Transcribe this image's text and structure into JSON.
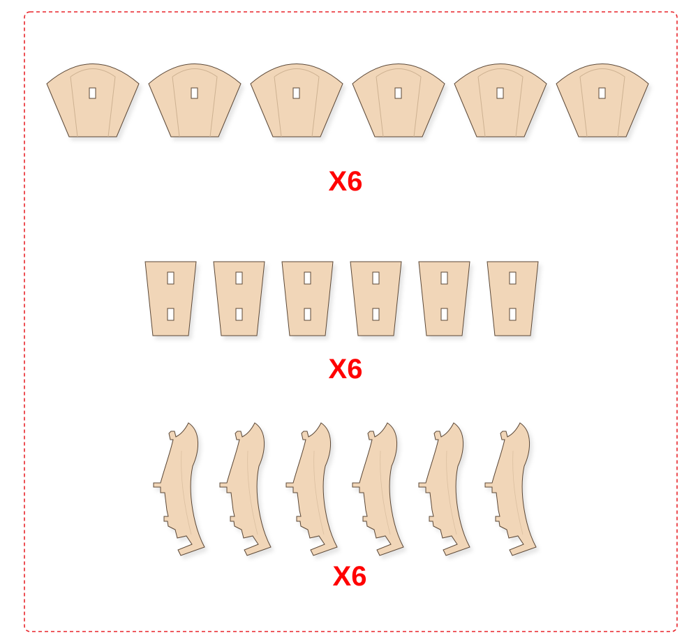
{
  "colors": {
    "border": "#e8242a",
    "wood_fill": "#f1d6b8",
    "wood_stroke": "#5a4636",
    "grain": "#cdb191",
    "hole_fill": "#ffffff",
    "label": "#ff0000"
  },
  "groups": [
    {
      "part": "arched-top-panel",
      "count": 6,
      "label": "X6"
    },
    {
      "part": "trapezoid-panel",
      "count": 6,
      "label": "X6"
    },
    {
      "part": "curved-leg",
      "count": 6,
      "label": "X6"
    }
  ]
}
